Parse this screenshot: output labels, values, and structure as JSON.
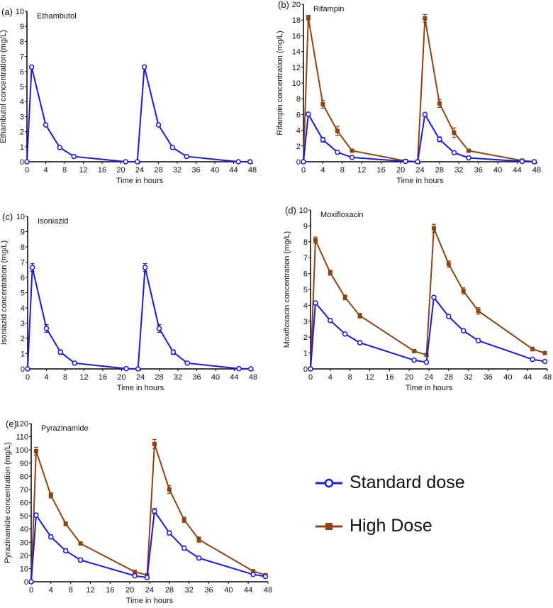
{
  "chart_data": [
    {
      "type": "line",
      "panel": "(a)",
      "title": "Ethambutol",
      "xlabel": "Time in hours",
      "ylabel": "Ethambutol concentration (mg/L)",
      "xlim": [
        0,
        48
      ],
      "ylim": [
        0,
        10
      ],
      "xticks": [
        0,
        4,
        8,
        12,
        16,
        20,
        24,
        28,
        32,
        36,
        40,
        44,
        48
      ],
      "yticks": [
        0,
        1,
        2,
        3,
        4,
        5,
        6,
        7,
        8,
        9,
        10
      ],
      "x": [
        0,
        1,
        4,
        7,
        10,
        21,
        23.5,
        25,
        28,
        31,
        34,
        45,
        47.5
      ],
      "series": [
        {
          "name": "Standard dose",
          "values": [
            0,
            6.3,
            2.45,
            0.95,
            0.35,
            0,
            0,
            6.3,
            2.45,
            0.95,
            0.35,
            0,
            0
          ],
          "err": [
            0,
            0.05,
            0.05,
            0.05,
            0.03,
            0,
            0,
            0.05,
            0.05,
            0.05,
            0.03,
            0,
            0
          ]
        }
      ]
    },
    {
      "type": "line",
      "panel": "(b)",
      "title": "Rifampin",
      "xlabel": "Time in hours",
      "ylabel": "Rifampin concentration (mg/L)",
      "xlim": [
        0,
        48
      ],
      "ylim": [
        0,
        20
      ],
      "xticks": [
        0,
        4,
        8,
        12,
        16,
        20,
        24,
        28,
        32,
        36,
        40,
        44,
        48
      ],
      "yticks": [
        0,
        2,
        4,
        6,
        8,
        10,
        12,
        14,
        16,
        18,
        20
      ],
      "x": [
        0,
        1,
        4,
        7,
        10,
        21,
        23.5,
        25,
        28,
        31,
        34,
        45,
        47.5
      ],
      "series": [
        {
          "name": "Standard dose",
          "values": [
            0,
            6.05,
            2.8,
            1.2,
            0.55,
            0.05,
            0,
            6.0,
            2.85,
            1.15,
            0.5,
            0.05,
            0
          ],
          "err": [
            0,
            0.1,
            0.3,
            0.1,
            0.05,
            0,
            0,
            0.1,
            0.3,
            0.1,
            0.05,
            0,
            0
          ]
        },
        {
          "name": "High Dose",
          "values": [
            0,
            18.3,
            7.3,
            3.9,
            1.4,
            0.1,
            0,
            18.2,
            7.4,
            3.7,
            1.4,
            0.15,
            0
          ],
          "err": [
            0,
            0.3,
            0.5,
            0.6,
            0.1,
            0.05,
            0,
            0.5,
            0.5,
            0.6,
            0.1,
            0.05,
            0
          ]
        }
      ]
    },
    {
      "type": "line",
      "panel": "(c)",
      "title": "Isoniazid",
      "xlabel": "Time in hours",
      "ylabel": "Isoniazid concentration (mg/L)",
      "xlim": [
        0,
        48
      ],
      "ylim": [
        0,
        10
      ],
      "xticks": [
        0,
        4,
        8,
        12,
        16,
        20,
        24,
        28,
        32,
        36,
        40,
        44,
        48
      ],
      "yticks": [
        0,
        1,
        2,
        3,
        4,
        5,
        6,
        7,
        8,
        9,
        10
      ],
      "x": [
        0,
        1,
        4,
        7,
        10,
        21,
        23.5,
        25,
        28,
        31,
        34,
        45,
        47.5
      ],
      "series": [
        {
          "name": "Standard dose",
          "values": [
            0,
            6.65,
            2.65,
            1.1,
            0.38,
            0.02,
            0,
            6.65,
            2.65,
            1.1,
            0.38,
            0.02,
            0
          ],
          "err": [
            0,
            0.25,
            0.25,
            0.15,
            0.03,
            0,
            0,
            0.25,
            0.25,
            0.15,
            0.03,
            0,
            0
          ]
        }
      ]
    },
    {
      "type": "line",
      "panel": "(d)",
      "title": "Moxifloxacin",
      "xlabel": "Time in hours",
      "ylabel": "Moxifloxacin  concentration (mg/L)",
      "xlim": [
        0,
        48
      ],
      "ylim": [
        0,
        10
      ],
      "xticks": [
        0,
        4,
        8,
        12,
        16,
        20,
        24,
        28,
        32,
        36,
        40,
        44,
        48
      ],
      "yticks": [
        0,
        1,
        2,
        3,
        4,
        5,
        6,
        7,
        8,
        9,
        10
      ],
      "x": [
        0,
        1,
        4,
        7,
        10,
        21,
        23.5,
        25,
        28,
        31,
        34,
        45,
        47.5
      ],
      "series": [
        {
          "name": "Standard dose",
          "values": [
            0,
            4.15,
            3.05,
            2.2,
            1.65,
            0.55,
            0.42,
            4.5,
            3.3,
            2.4,
            1.78,
            0.6,
            0.47
          ],
          "err": [
            0,
            0.05,
            0.05,
            0.05,
            0.1,
            0.05,
            0.03,
            0.05,
            0.1,
            0.12,
            0.12,
            0.05,
            0.03
          ]
        },
        {
          "name": "High Dose",
          "values": [
            0,
            8.1,
            6.05,
            4.5,
            3.35,
            1.12,
            0.88,
            8.85,
            6.6,
            4.9,
            3.65,
            1.25,
            1.0
          ],
          "err": [
            0,
            0.2,
            0.15,
            0.15,
            0.15,
            0.05,
            0.05,
            0.25,
            0.2,
            0.2,
            0.2,
            0.12,
            0.1
          ]
        }
      ]
    },
    {
      "type": "line",
      "panel": "(e)",
      "title": "Pyrazinamide",
      "xlabel": "Time in hours",
      "ylabel": "Pyrazinamide concentration (mg/L)",
      "xlim": [
        0,
        48
      ],
      "ylim": [
        0,
        120
      ],
      "xticks": [
        0,
        4,
        8,
        12,
        16,
        20,
        24,
        28,
        32,
        36,
        40,
        44,
        48
      ],
      "yticks": [
        0,
        10,
        20,
        30,
        40,
        50,
        60,
        70,
        80,
        90,
        100,
        110,
        120
      ],
      "x": [
        0,
        1,
        4,
        7,
        10,
        21,
        23.5,
        25,
        28,
        31,
        34,
        45,
        47.5
      ],
      "series": [
        {
          "name": "Standard dose",
          "values": [
            0,
            50.5,
            34,
            23.5,
            16.5,
            4.5,
            3.2,
            53.5,
            37,
            25.5,
            18,
            5.5,
            4
          ],
          "err": [
            0,
            1.5,
            1.5,
            1.5,
            1.5,
            0.5,
            0.5,
            2,
            1.5,
            1.5,
            0.5,
            1,
            1
          ]
        },
        {
          "name": "High Dose",
          "values": [
            0,
            99,
            65.5,
            44,
            29,
            7.5,
            5,
            104.5,
            70,
            47,
            32,
            8,
            5
          ],
          "err": [
            0,
            3,
            2,
            1.5,
            0.5,
            1,
            0.5,
            3.5,
            3,
            2,
            2,
            1,
            1
          ]
        }
      ]
    }
  ],
  "legend": {
    "items": [
      {
        "label": "Standard dose",
        "color": "#1a1adb",
        "marker": "open-circle"
      },
      {
        "label": "High Dose",
        "color": "#8b4513",
        "marker": "filled-square"
      }
    ]
  },
  "colors": {
    "Standard dose": "#1a1adb",
    "High Dose": "#8b4513"
  }
}
